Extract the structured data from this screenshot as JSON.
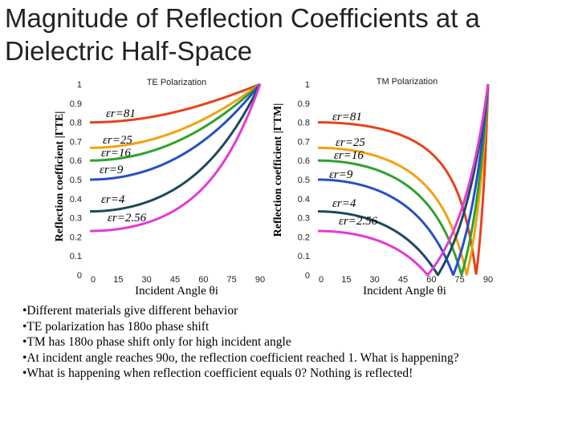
{
  "slide": {
    "title_line1": "Magnitude of Reflection Coefficients at a",
    "title_line2": "Dielectric Half-Space"
  },
  "chart_data": [
    {
      "type": "line",
      "title": "TE Polarization",
      "xlabel": "Incident Angle θi",
      "ylabel": "Reflection coefficient |ΓTE|",
      "x_ticks": [
        "0",
        "15",
        "30",
        "45",
        "60",
        "75",
        "90"
      ],
      "y_ticks": [
        "0",
        "0.1",
        "0.2",
        "0.3",
        "0.4",
        "0.5",
        "0.6",
        "0.7",
        "0.8",
        "0.9",
        "1"
      ],
      "xlim": [
        0,
        90
      ],
      "ylim": [
        0,
        1
      ],
      "series": [
        {
          "name": "εr=81",
          "color": "#e8421a",
          "curve": "te",
          "eps": 81
        },
        {
          "name": "εr=25",
          "color": "#f2a20e",
          "curve": "te",
          "eps": 25
        },
        {
          "name": "εr=16",
          "color": "#2fa12f",
          "curve": "te",
          "eps": 16
        },
        {
          "name": "εr=9",
          "color": "#2650c8",
          "curve": "te",
          "eps": 9
        },
        {
          "name": "εr=4",
          "color": "#1b4a5c",
          "curve": "te",
          "eps": 4
        },
        {
          "name": "εr=2.56",
          "color": "#e23ad8",
          "curve": "te",
          "eps": 2.56
        }
      ]
    },
    {
      "type": "line",
      "title": "TM Polarization",
      "xlabel": "Incident Angle θi",
      "ylabel": "Reflection coefficient |ΓTM|",
      "x_ticks": [
        "0",
        "15",
        "30",
        "45",
        "60",
        "75",
        "90"
      ],
      "y_ticks": [
        "0",
        "0.1",
        "0.2",
        "0.3",
        "0.4",
        "0.5",
        "0.6",
        "0.7",
        "0.8",
        "0.9",
        "1"
      ],
      "xlim": [
        0,
        90
      ],
      "ylim": [
        0,
        1
      ],
      "series": [
        {
          "name": "εr=81",
          "color": "#e8421a",
          "curve": "tm",
          "eps": 81
        },
        {
          "name": "εr=25",
          "color": "#f2a20e",
          "curve": "tm",
          "eps": 25
        },
        {
          "name": "εr=16",
          "color": "#2fa12f",
          "curve": "tm",
          "eps": 16
        },
        {
          "name": "εr=9",
          "color": "#2650c8",
          "curve": "tm",
          "eps": 9
        },
        {
          "name": "εr=4",
          "color": "#1b4a5c",
          "curve": "tm",
          "eps": 4
        },
        {
          "name": "εr=2.56",
          "color": "#e23ad8",
          "curve": "tm",
          "eps": 2.56
        }
      ]
    }
  ],
  "bullets": [
    "•Different materials give different behavior",
    "•TE polarization has 180o phase shift",
    "•TM has 180o phase shift only for high incident angle",
    "•At incident angle reaches 90o, the reflection coefficient reached 1. What is happening?",
    "•What is happening when reflection coefficient equals 0? Nothing is reflected!"
  ]
}
